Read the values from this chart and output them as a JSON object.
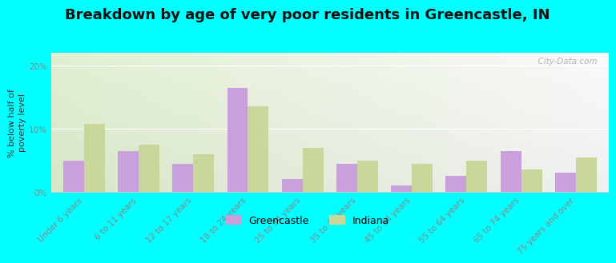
{
  "title": "Breakdown by age of very poor residents in Greencastle, IN",
  "ylabel": "% below half of\npoverty level",
  "categories": [
    "Under 6 years",
    "6 to 11 years",
    "12 to 17 years",
    "18 to 24 years",
    "25 to 34 years",
    "35 to 44 years",
    "45 to 54 years",
    "55 to 64 years",
    "65 to 74 years",
    "75 years and over"
  ],
  "greencastle_values": [
    5.0,
    6.5,
    4.5,
    16.5,
    2.0,
    4.5,
    1.0,
    2.5,
    6.5,
    3.0
  ],
  "indiana_values": [
    10.8,
    7.5,
    6.0,
    13.5,
    7.0,
    5.0,
    4.5,
    5.0,
    3.5,
    5.5
  ],
  "greencastle_color": "#c9a0dc",
  "indiana_color": "#c8d89a",
  "background_color": "#00ffff",
  "ylim": [
    0,
    22
  ],
  "yticks": [
    0,
    10,
    20
  ],
  "yticklabels": [
    "0%",
    "10%",
    "20%"
  ],
  "bar_width": 0.38,
  "watermark": "  City-Data.com",
  "legend_labels": [
    "Greencastle",
    "Indiana"
  ],
  "title_fontsize": 13,
  "axis_label_fontsize": 8,
  "tick_fontsize": 7.5
}
